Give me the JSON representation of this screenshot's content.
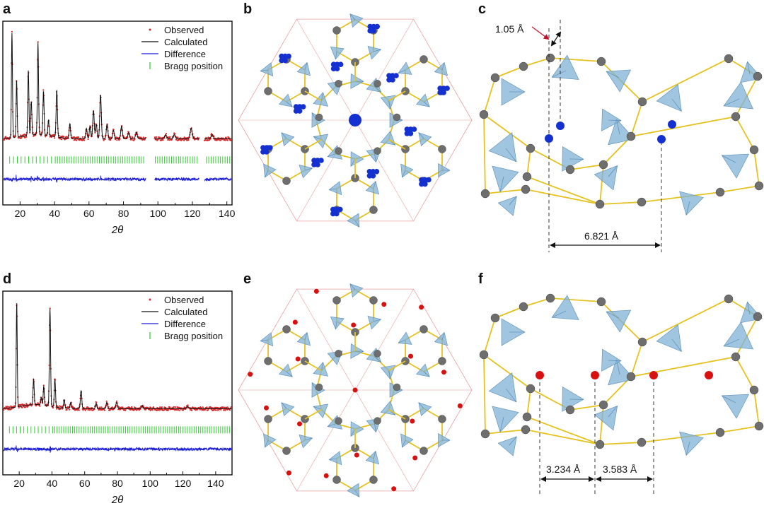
{
  "panels": {
    "a": "a",
    "b": "b",
    "c": "c",
    "d": "d",
    "e": "e",
    "f": "f"
  },
  "chart_data": [
    {
      "type": "line",
      "panel": "a",
      "xlabel": "2θ",
      "ylabel": "",
      "xlim": [
        10,
        143
      ],
      "xticks": [
        "20",
        "40",
        "60",
        "80",
        "100",
        "120",
        "140"
      ],
      "xtick_values": [
        20,
        40,
        60,
        80,
        100,
        120,
        140
      ],
      "grid": false,
      "legend_position": "top-right",
      "excluded_regions": [
        [
          93,
          98
        ],
        [
          124,
          127
        ]
      ],
      "peaks": [
        {
          "x": 15.3,
          "intensity": 1.0
        },
        {
          "x": 18.0,
          "intensity": 0.55
        },
        {
          "x": 24.8,
          "intensity": 0.62
        },
        {
          "x": 26.5,
          "intensity": 0.32
        },
        {
          "x": 30.4,
          "intensity": 0.88
        },
        {
          "x": 33.6,
          "intensity": 0.42
        },
        {
          "x": 36.5,
          "intensity": 0.15
        },
        {
          "x": 41.3,
          "intensity": 0.45
        },
        {
          "x": 48.9,
          "intensity": 0.14
        },
        {
          "x": 58.5,
          "intensity": 0.1
        },
        {
          "x": 60.6,
          "intensity": 0.12
        },
        {
          "x": 62.6,
          "intensity": 0.27
        },
        {
          "x": 64.2,
          "intensity": 0.14
        },
        {
          "x": 66.7,
          "intensity": 0.42
        },
        {
          "x": 70.5,
          "intensity": 0.14
        },
        {
          "x": 74.2,
          "intensity": 0.08
        },
        {
          "x": 78.9,
          "intensity": 0.12
        },
        {
          "x": 83.0,
          "intensity": 0.06
        },
        {
          "x": 87.5,
          "intensity": 0.06
        },
        {
          "x": 104.5,
          "intensity": 0.04
        },
        {
          "x": 109.5,
          "intensity": 0.04
        },
        {
          "x": 119.3,
          "intensity": 0.1
        },
        {
          "x": 131.5,
          "intensity": 0.04
        }
      ],
      "series": [
        {
          "name": "Observed",
          "color": "#d62728",
          "style": "dots"
        },
        {
          "name": "Calculated",
          "color": "#111111",
          "style": "line"
        },
        {
          "name": "Difference",
          "color": "#1f1fd6",
          "style": "line"
        },
        {
          "name": "Bragg position",
          "color": "#33cc33",
          "style": "ticks"
        }
      ]
    },
    {
      "type": "line",
      "panel": "d",
      "xlabel": "2θ",
      "ylabel": "",
      "xlim": [
        10,
        150
      ],
      "xticks": [
        "20",
        "40",
        "60",
        "80",
        "100",
        "120",
        "140"
      ],
      "xtick_values": [
        20,
        40,
        60,
        80,
        100,
        120,
        140
      ],
      "grid": false,
      "legend_position": "top-right",
      "excluded_regions": [],
      "peaks": [
        {
          "x": 18.5,
          "intensity": 1.0
        },
        {
          "x": 28.8,
          "intensity": 0.25
        },
        {
          "x": 33.5,
          "intensity": 0.07
        },
        {
          "x": 35.0,
          "intensity": 0.18
        },
        {
          "x": 38.8,
          "intensity": 0.93
        },
        {
          "x": 41.8,
          "intensity": 0.27
        },
        {
          "x": 47.5,
          "intensity": 0.08
        },
        {
          "x": 51.5,
          "intensity": 0.06
        },
        {
          "x": 57.8,
          "intensity": 0.17
        },
        {
          "x": 67.0,
          "intensity": 0.05
        },
        {
          "x": 73.5,
          "intensity": 0.06
        },
        {
          "x": 79.5,
          "intensity": 0.06
        },
        {
          "x": 95.0,
          "intensity": 0.03
        },
        {
          "x": 123.0,
          "intensity": 0.02
        }
      ],
      "series": [
        {
          "name": "Observed",
          "color": "#d62728",
          "style": "dots"
        },
        {
          "name": "Calculated",
          "color": "#111111",
          "style": "line"
        },
        {
          "name": "Difference",
          "color": "#1f1fd6",
          "style": "line"
        },
        {
          "name": "Bragg position",
          "color": "#33cc33",
          "style": "ticks"
        }
      ]
    }
  ],
  "structure_c": {
    "label_small": "1.05 Å",
    "label_large": "6.821 Å",
    "ion_color": "#1530d0"
  },
  "structure_f": {
    "label_left": "3.234 Å",
    "label_right": "3.583 Å",
    "ion_color": "#d81010"
  },
  "structure_b": {
    "guest_color": "#1530d0"
  },
  "structure_e": {
    "guest_color": "#d81010"
  },
  "colors": {
    "tetrahedra": "#7fb1d6",
    "node_gray": "#6e6e6e",
    "bond_yellow": "#e5c21f",
    "cell_outline": "#e8a0a0"
  }
}
